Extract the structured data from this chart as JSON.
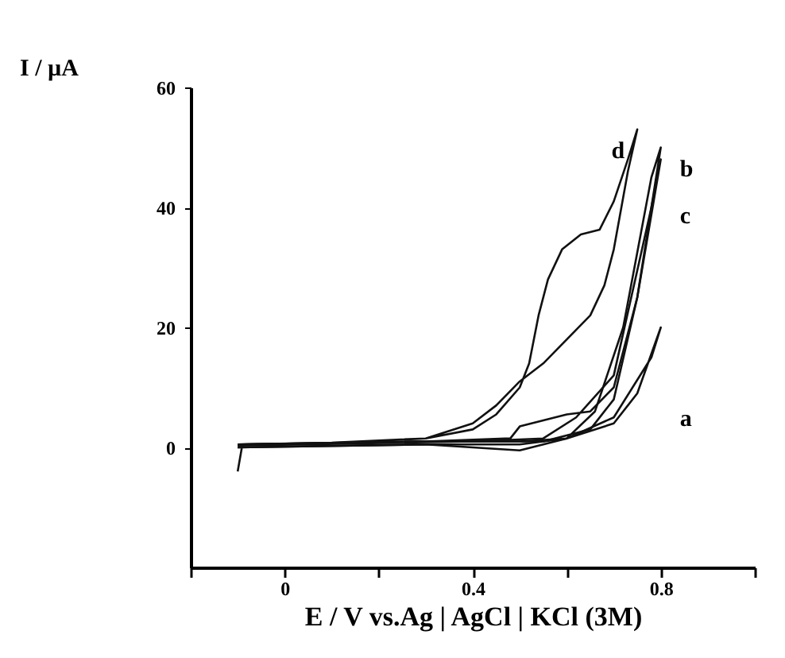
{
  "chart_data": {
    "type": "line",
    "xlabel": "E / V vs.Ag | AgCl | KCl (3M)",
    "ylabel": "I / µA",
    "xlim": [
      -0.2,
      1.0
    ],
    "xticks": [
      {
        "value": -0.2,
        "label": null
      },
      0,
      {
        "value": 0.2,
        "label": null
      },
      {
        "value": 0.4,
        "label": "0.4"
      },
      {
        "value": 0.6,
        "label": null
      },
      {
        "value": 0.8,
        "label": "0.8"
      },
      {
        "value": 1.0,
        "label": null
      }
    ],
    "ylim": [
      -20,
      60
    ],
    "yticks": [
      0,
      20,
      40,
      60
    ],
    "grid": false,
    "legend": false,
    "marker": "none",
    "line_style": "solid",
    "series": [
      {
        "name": "a",
        "color": "#111111",
        "x": [
          -0.1,
          -0.09,
          0.1,
          0.3,
          0.5,
          0.6,
          0.7,
          0.75,
          0.8,
          0.78,
          0.7,
          0.6,
          0.5,
          0.3,
          -0.1
        ],
        "values": [
          -4,
          0.5,
          0.7,
          1,
          1,
          1.5,
          4,
          9,
          20,
          15,
          5,
          1.5,
          0.5,
          0.5,
          0
        ]
      },
      {
        "name": "b",
        "color": "#111111",
        "x": [
          -0.1,
          0.3,
          0.55,
          0.65,
          0.7,
          0.75,
          0.8,
          0.78,
          0.72,
          0.66,
          0.6,
          0.5,
          0.3,
          -0.1
        ],
        "values": [
          0.5,
          1,
          1,
          3,
          8,
          25,
          50,
          45,
          20,
          6,
          1.5,
          -0.5,
          0.5,
          0
        ]
      },
      {
        "name": "c",
        "color": "#111111",
        "x": [
          -0.1,
          0.3,
          0.48,
          0.5,
          0.55,
          0.6,
          0.65,
          0.7,
          0.75,
          0.8,
          0.78,
          0.7,
          0.62,
          0.55,
          0.4,
          -0.1
        ],
        "values": [
          0.5,
          1,
          1.5,
          3.5,
          4.5,
          5.5,
          6,
          10,
          25,
          48,
          40,
          12,
          5,
          1.5,
          1,
          0.3
        ]
      },
      {
        "name": "d",
        "color": "#111111",
        "x": [
          -0.1,
          0.1,
          0.3,
          0.4,
          0.45,
          0.5,
          0.52,
          0.54,
          0.56,
          0.59,
          0.63,
          0.67,
          0.7,
          0.73,
          0.75,
          0.73,
          0.7,
          0.68,
          0.65,
          0.6,
          0.55,
          0.5,
          0.45,
          0.4,
          0.3,
          0.1,
          -0.1
        ],
        "values": [
          0.5,
          0.8,
          1.5,
          3,
          5.5,
          10,
          14,
          22,
          28,
          33,
          35.5,
          36.3,
          41,
          48,
          53,
          46,
          33,
          27,
          22,
          18,
          14,
          11,
          7,
          4,
          1.5,
          0.7,
          0.4
        ]
      }
    ]
  }
}
